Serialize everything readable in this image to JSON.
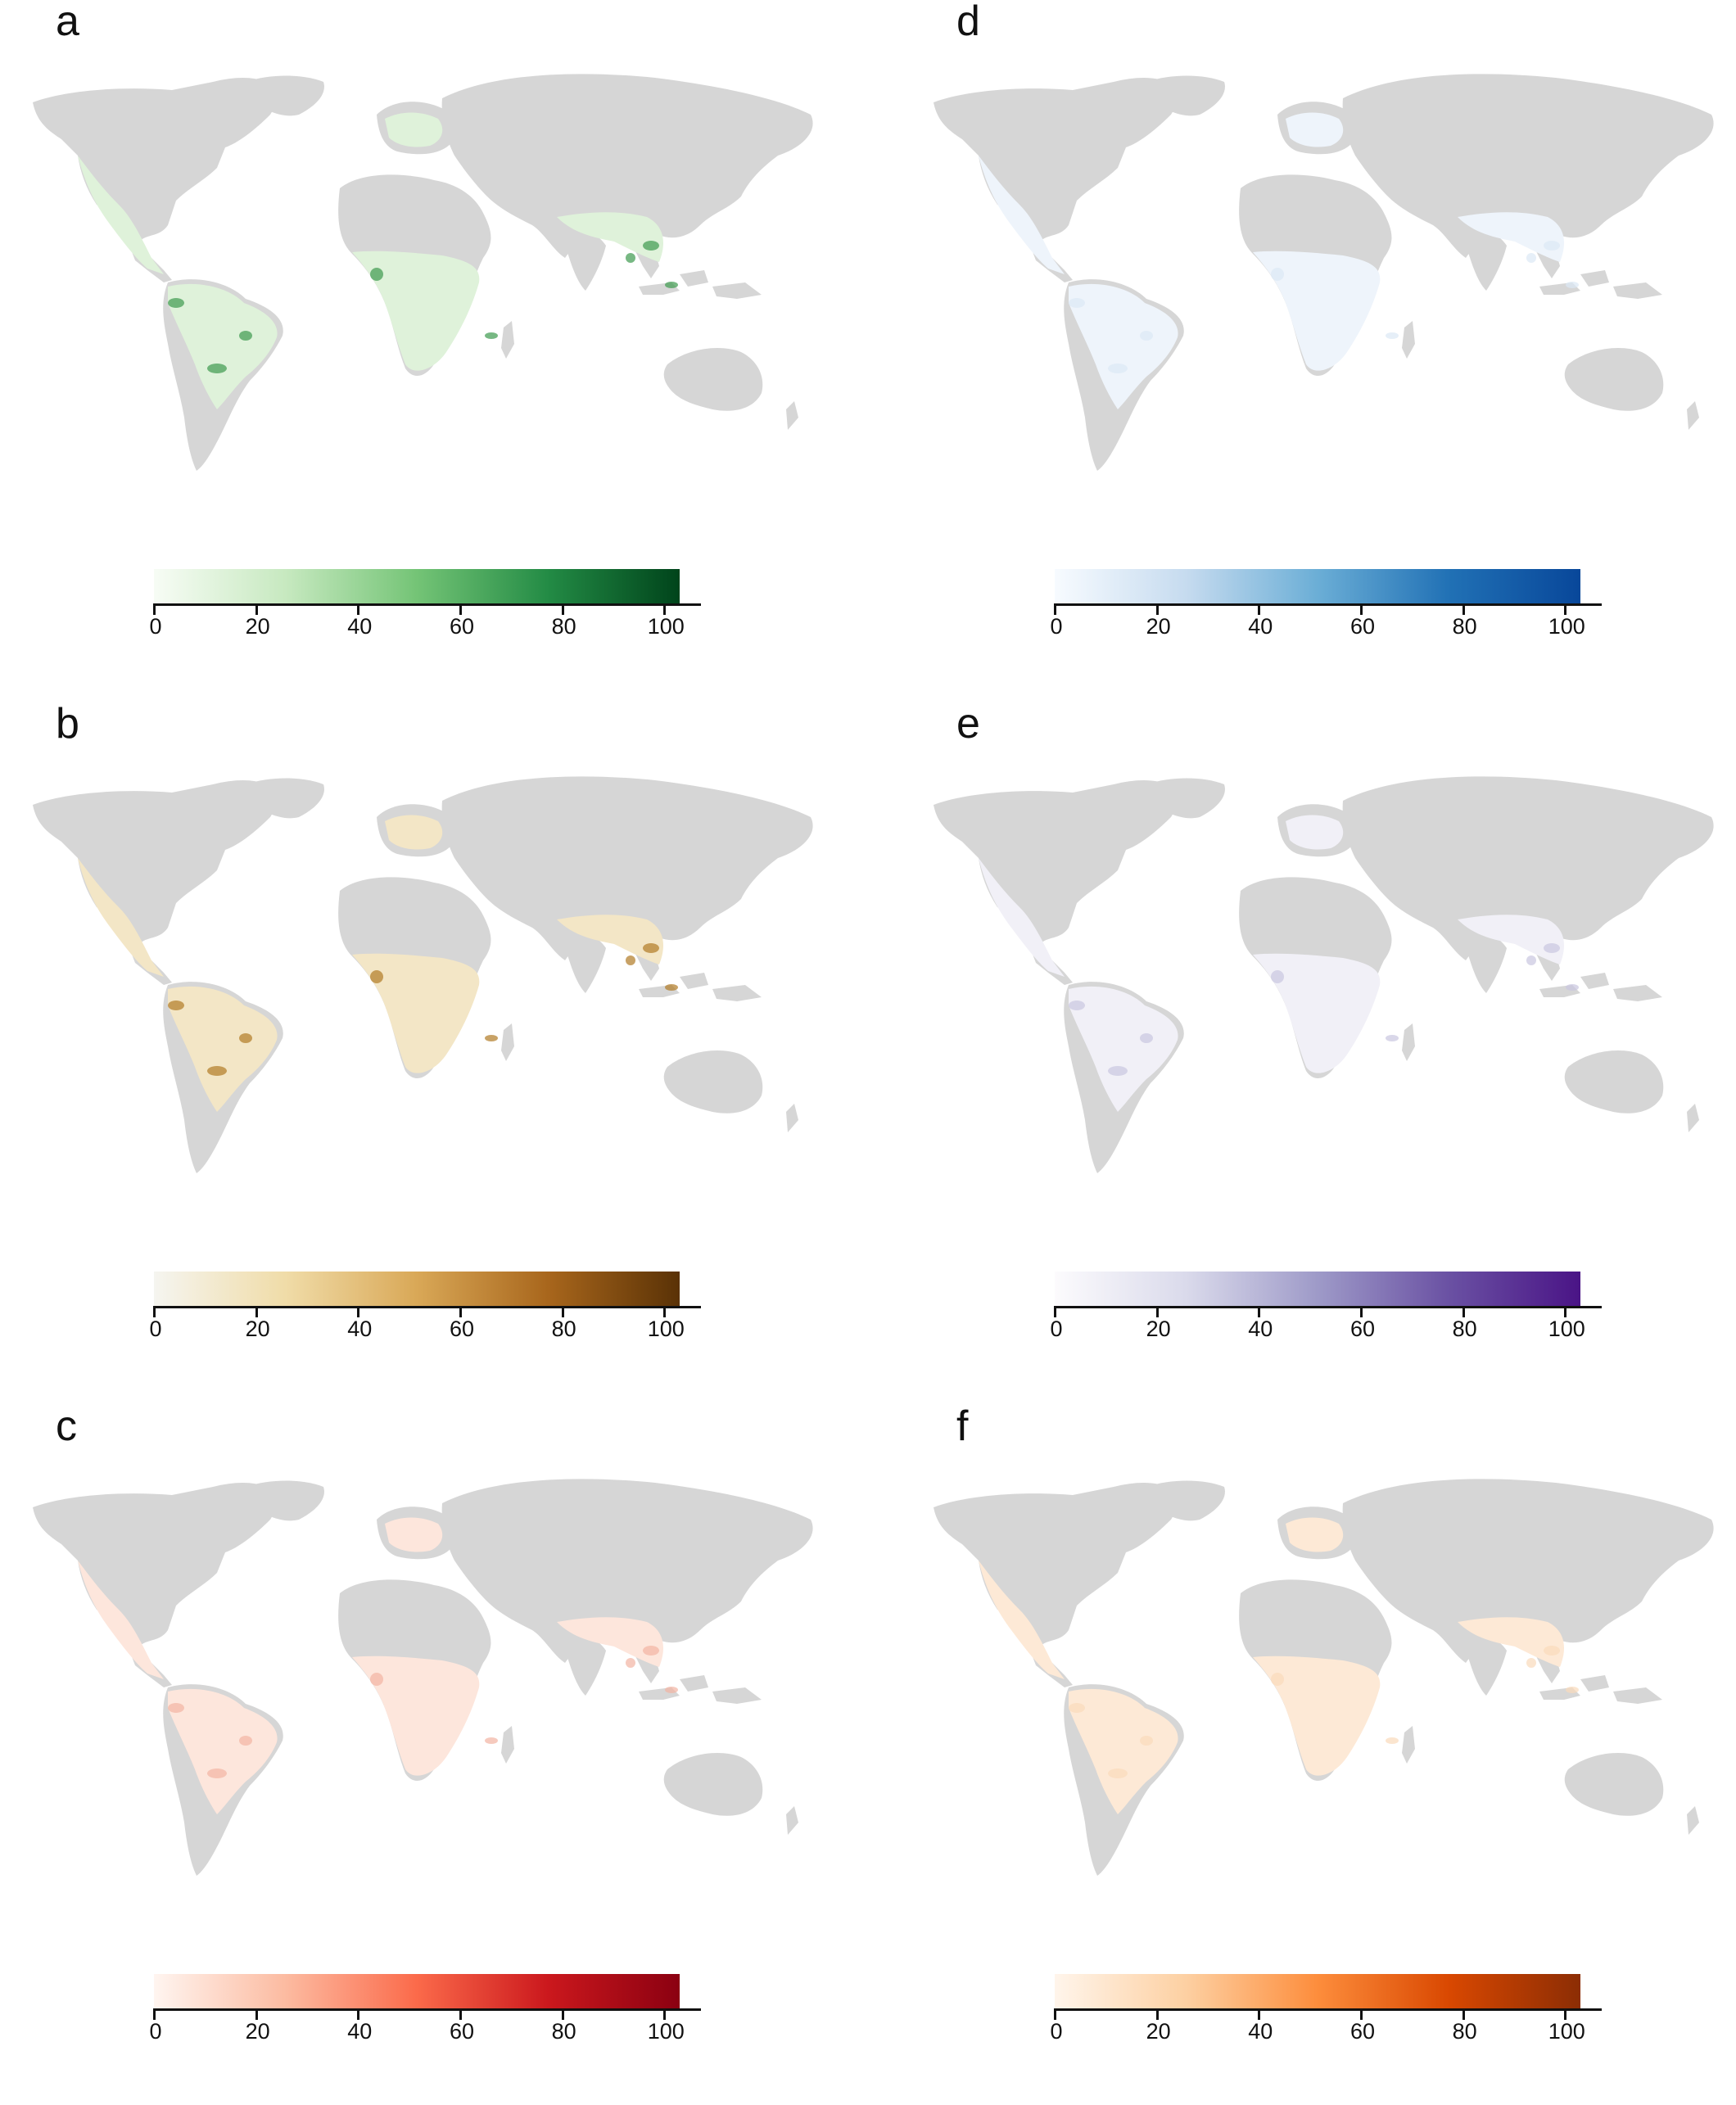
{
  "panels": [
    {
      "id": "a",
      "label": "a",
      "scale": [
        "#f7fcf5",
        "#c7e9c0",
        "#74c476",
        "#238b45",
        "#00441b"
      ],
      "land_tint": "#dff2da",
      "hotspot_color": "#3d9a4f"
    },
    {
      "id": "b",
      "label": "b",
      "scale": [
        "#f5f5f0",
        "#f0dca8",
        "#d9a857",
        "#a8661c",
        "#5a3206"
      ],
      "land_tint": "#f3e6c6",
      "hotspot_color": "#b07a25"
    },
    {
      "id": "c",
      "label": "c",
      "scale": [
        "#fff5f0",
        "#fcbba1",
        "#fb6a4a",
        "#cb181d",
        "#8b0011"
      ],
      "land_tint": "#fde6dc",
      "hotspot_color": "#f2b4a2"
    },
    {
      "id": "d",
      "label": "d",
      "scale": [
        "#f7fbff",
        "#c6dbef",
        "#6baed6",
        "#2171b5",
        "#08479a"
      ],
      "land_tint": "#eef4fb",
      "hotspot_color": "#dbe8f5"
    },
    {
      "id": "e",
      "label": "e",
      "scale": [
        "#fcfbfd",
        "#dadaeb",
        "#9e9ac8",
        "#6a51a3",
        "#4a1486"
      ],
      "land_tint": "#f1f0f7",
      "hotspot_color": "#c9c6e0"
    },
    {
      "id": "f",
      "label": "f",
      "scale": [
        "#fff5eb",
        "#fdd0a2",
        "#fd8d3c",
        "#d94801",
        "#8c2d04"
      ],
      "land_tint": "#fde9d6",
      "hotspot_color": "#f9dabb"
    }
  ],
  "legend": {
    "ticks": [
      "0",
      "20",
      "40",
      "60",
      "80",
      "100"
    ],
    "range": [
      0,
      103
    ]
  },
  "map": {
    "land_color": "#d6d6d6"
  }
}
